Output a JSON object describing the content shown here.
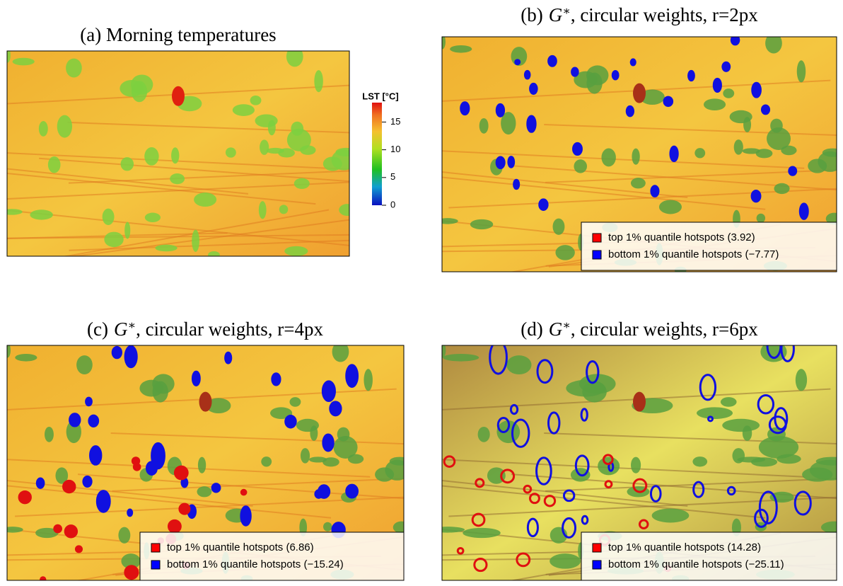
{
  "panels": [
    {
      "title": "(a) Morning temperatures"
    },
    {
      "title": {
        "prefix": "(b)",
        "symbol": "G",
        "sup": "∗",
        "rest": ", circular weights, r=2px"
      },
      "legend": [
        {
          "label": "top 1% quantile hotspots (3.92)",
          "color": "#ff0000"
        },
        {
          "label": "bottom 1% quantile hotspots (−7.77)",
          "color": "#0000ff"
        }
      ]
    },
    {
      "title": {
        "prefix": "(c)",
        "symbol": "G",
        "sup": "∗",
        "rest": ", circular weights, r=4px"
      },
      "legend": [
        {
          "label": "top 1% quantile hotspots (6.86)",
          "color": "#ff0000"
        },
        {
          "label": "bottom 1% quantile hotspots (−15.24)",
          "color": "#0000ff"
        }
      ]
    },
    {
      "title": {
        "prefix": "(d)",
        "symbol": "G",
        "sup": "∗",
        "rest": ", circular weights, r=6px"
      },
      "legend": [
        {
          "label": "top 1% quantile hotspots (14.28)",
          "color": "#ff0000"
        },
        {
          "label": "bottom 1% quantile hotspots (−25.11)",
          "color": "#0000ff"
        }
      ]
    }
  ],
  "colorbar": {
    "title": "LST [°C]",
    "ylim": [
      0,
      18.5
    ],
    "yticks": [
      0,
      5,
      10,
      15
    ]
  }
}
